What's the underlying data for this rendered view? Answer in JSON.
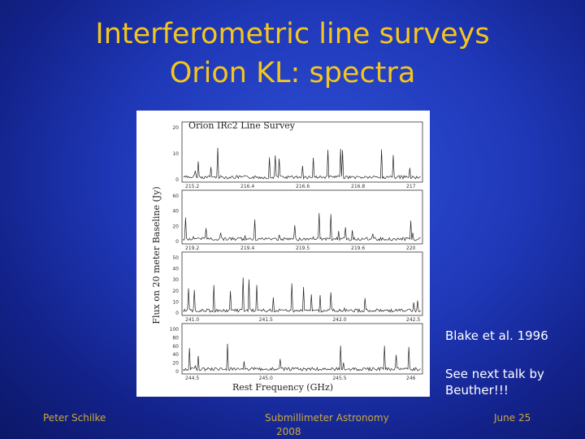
{
  "slide": {
    "title_line1": "Interferometric line surveys",
    "title_line2": "Orion KL: spectra",
    "citation": "Blake et al. 1996",
    "note_line1": "See next talk by",
    "note_line2": "Beuther!!!"
  },
  "footer": {
    "author": "Peter Schilke",
    "event_line1": "Submillimeter Astronomy",
    "event_line2": "2008",
    "date": "June 25"
  },
  "figure": {
    "title": "Orion IRc2 Line Survey",
    "ylabel": "Flux on 20 meter Baseline (Jy)",
    "xlabel": "Rest Frequency (GHz)",
    "panels": [
      {
        "yticks": [
          "20",
          "10",
          "0"
        ],
        "xticks": [
          "215.2",
          "216.4",
          "216.6",
          "216.8",
          "217"
        ]
      },
      {
        "yticks": [
          "60",
          "40",
          "20",
          "0"
        ],
        "xticks": [
          "219.2",
          "219.4",
          "219.5",
          "219.6",
          "220"
        ]
      },
      {
        "yticks": [
          "50",
          "40",
          "30",
          "20",
          "10",
          "0"
        ],
        "xticks": [
          "241.0",
          "241.5",
          "242.0",
          "242.5"
        ]
      },
      {
        "yticks": [
          "100",
          "80",
          "60",
          "40",
          "20",
          "0"
        ],
        "xticks": [
          "244.5",
          "245.0",
          "245.5",
          "246"
        ]
      }
    ]
  },
  "colors": {
    "title": "#f4c61d",
    "text": "#ffffff",
    "footer": "#c9a93a",
    "background": "#1f38b8"
  }
}
